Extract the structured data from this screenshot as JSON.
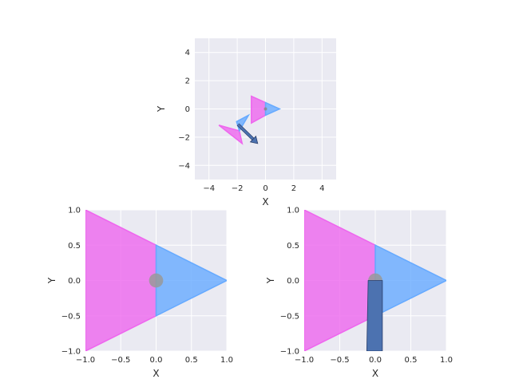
{
  "chart_data": [
    {
      "type": "area",
      "subplot": "top-center",
      "xlabel": "X",
      "ylabel": "Y",
      "xlim": [
        -5,
        5
      ],
      "ylim": [
        -5,
        5
      ],
      "xticks": [
        -4,
        -2,
        0,
        2,
        4
      ],
      "yticks": [
        -4,
        -2,
        0,
        2,
        4
      ],
      "xtick_labels": [
        "−4",
        "−2",
        "0",
        "2",
        "4"
      ],
      "ytick_labels": [
        "−4",
        "−2",
        "0",
        "2",
        "4"
      ],
      "grid": true,
      "polygons": [
        {
          "color": "#ee66ee",
          "points": [
            [
              -1,
              0.9
            ],
            [
              -1,
              -1.0
            ],
            [
              0,
              -0.45
            ],
            [
              0,
              0.45
            ]
          ]
        },
        {
          "color": "#66aaff",
          "points": [
            [
              0,
              0.45
            ],
            [
              0,
              -0.45
            ],
            [
              1,
              0
            ]
          ]
        },
        {
          "color": "#ee66ee",
          "points": [
            [
              -3.3,
              -1.15
            ],
            [
              -1.65,
              -2.45
            ],
            [
              -1.85,
              -1.55
            ]
          ]
        },
        {
          "color": "#66aaff",
          "points": [
            [
              -2.05,
              -0.9
            ],
            [
              -1.2,
              -0.45
            ],
            [
              -1.85,
              -1.55
            ]
          ]
        }
      ],
      "points": [
        {
          "x": 0,
          "y": 0,
          "color": "#888888"
        }
      ],
      "arrows": [
        {
          "x0": -1.95,
          "y0": -1.1,
          "x1": -0.55,
          "y1": -2.45,
          "color": "#4c72b0"
        }
      ]
    },
    {
      "type": "area",
      "subplot": "bottom-left",
      "xlabel": "X",
      "ylabel": "Y",
      "xlim": [
        -1,
        1
      ],
      "ylim": [
        -1,
        1
      ],
      "xticks": [
        -1,
        -0.5,
        0,
        0.5,
        1
      ],
      "yticks": [
        -1,
        -0.5,
        0,
        0.5,
        1
      ],
      "xtick_labels": [
        "−1.0",
        "−0.5",
        "0.0",
        "0.5",
        "1.0"
      ],
      "ytick_labels": [
        "−1.0",
        "−0.5",
        "0.0",
        "0.5",
        "1.0"
      ],
      "grid": true,
      "polygons": [
        {
          "color": "#ee66ee",
          "points": [
            [
              -1,
              1
            ],
            [
              -1,
              -1
            ],
            [
              0,
              -0.5
            ],
            [
              0,
              0.5
            ]
          ]
        },
        {
          "color": "#66aaff",
          "points": [
            [
              0,
              0.5
            ],
            [
              0,
              -0.5
            ],
            [
              1,
              0
            ]
          ]
        }
      ],
      "points": [
        {
          "x": 0,
          "y": 0,
          "color": "#999999",
          "radius": 0.1
        }
      ],
      "bands": []
    },
    {
      "type": "area",
      "subplot": "bottom-right",
      "xlabel": "X",
      "ylabel": "Y",
      "xlim": [
        -1,
        1
      ],
      "ylim": [
        -1,
        1
      ],
      "xticks": [
        -1,
        -0.5,
        0,
        0.5,
        1
      ],
      "yticks": [
        -1,
        -0.5,
        0,
        0.5,
        1
      ],
      "xtick_labels": [
        "−1.0",
        "−0.5",
        "0.0",
        "0.5",
        "1.0"
      ],
      "ytick_labels": [
        "−1.0",
        "−0.5",
        "0.0",
        "0.5",
        "1.0"
      ],
      "grid": true,
      "polygons": [
        {
          "color": "#ee66ee",
          "points": [
            [
              -1,
              1
            ],
            [
              -1,
              -1
            ],
            [
              0,
              -0.5
            ],
            [
              0,
              0.5
            ]
          ]
        },
        {
          "color": "#66aaff",
          "points": [
            [
              0,
              0.5
            ],
            [
              0,
              -0.5
            ],
            [
              1,
              0
            ]
          ]
        }
      ],
      "points": [
        {
          "x": 0,
          "y": 0,
          "color": "#999999",
          "radius": 0.1
        }
      ],
      "bands": [
        {
          "color": "#4c72b0",
          "points": [
            [
              -0.1,
              0.0
            ],
            [
              0.1,
              0.0
            ],
            [
              0.1,
              -1.0
            ],
            [
              -0.12,
              -1.0
            ]
          ]
        }
      ]
    }
  ]
}
